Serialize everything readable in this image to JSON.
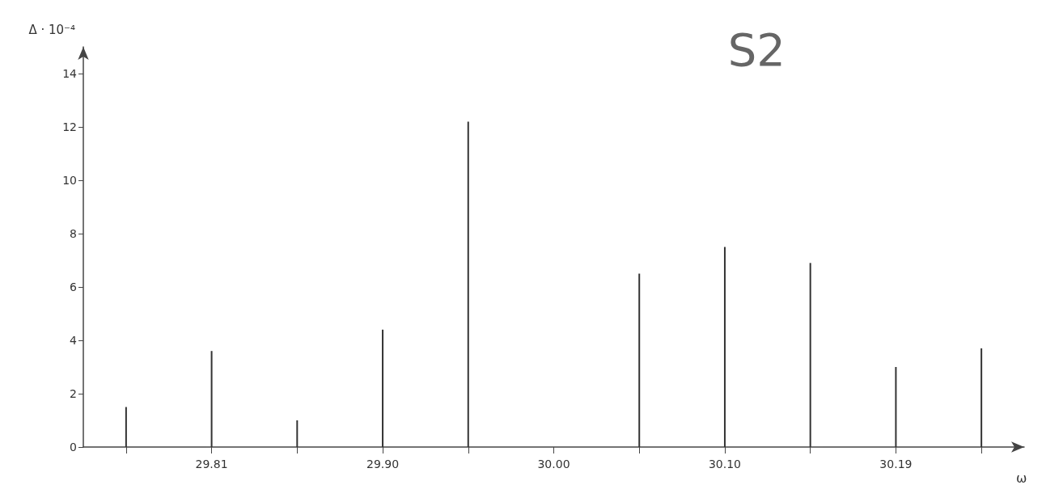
{
  "chart_data": {
    "type": "bar",
    "title": "S2",
    "xlabel": "ω",
    "ylabel": "Δ · 10⁻⁴",
    "categories": [
      null,
      "29.81",
      null,
      "29.90",
      null,
      "30.00",
      null,
      "30.10",
      null,
      "30.19",
      null
    ],
    "values": [
      1.5,
      3.6,
      1.0,
      4.4,
      12.2,
      null,
      6.5,
      7.5,
      6.9,
      3.0,
      3.7
    ],
    "color": "#333333",
    "ylim": [
      0,
      15
    ],
    "yticks": [
      0,
      2,
      4,
      6,
      8,
      10,
      12,
      14
    ],
    "grid": false
  }
}
